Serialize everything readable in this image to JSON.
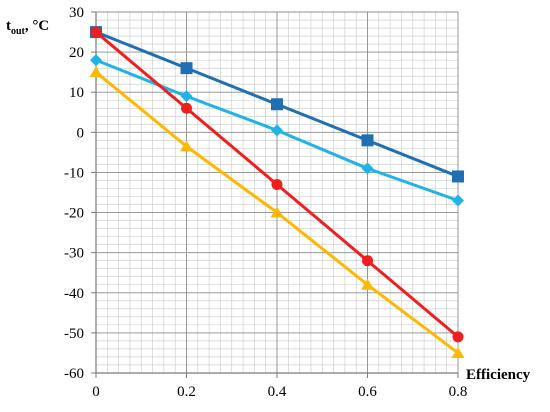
{
  "chart_data": {
    "type": "line",
    "title": "",
    "xlabel": "Efficiency",
    "ylabel": {
      "main": "t",
      "sub": "out",
      "unit": ", °C"
    },
    "x": [
      0,
      0.2,
      0.4,
      0.6,
      0.8
    ],
    "xlim": [
      0,
      0.8
    ],
    "ylim": [
      -60,
      30
    ],
    "x_ticks": [
      "0",
      "0.2",
      "0.4",
      "0.6",
      "0.8"
    ],
    "y_ticks": [
      "30",
      "20",
      "10",
      "0",
      "-10",
      "-20",
      "-30",
      "-40",
      "-50",
      "-60"
    ],
    "grid": true,
    "legend": "none",
    "series": [
      {
        "values": [
          25,
          16,
          7,
          -2,
          -11
        ],
        "color": "#1F6FB4",
        "marker": "square"
      },
      {
        "values": [
          18,
          9,
          0.5,
          -9,
          -17
        ],
        "color": "#1FB4E6",
        "marker": "diamond"
      },
      {
        "values": [
          25,
          6,
          -13,
          -32,
          -51
        ],
        "color": "#F01E1E",
        "marker": "circle"
      },
      {
        "values": [
          15,
          -3.5,
          -20,
          -38,
          -55
        ],
        "color": "#FFB800",
        "marker": "triangle"
      }
    ]
  }
}
